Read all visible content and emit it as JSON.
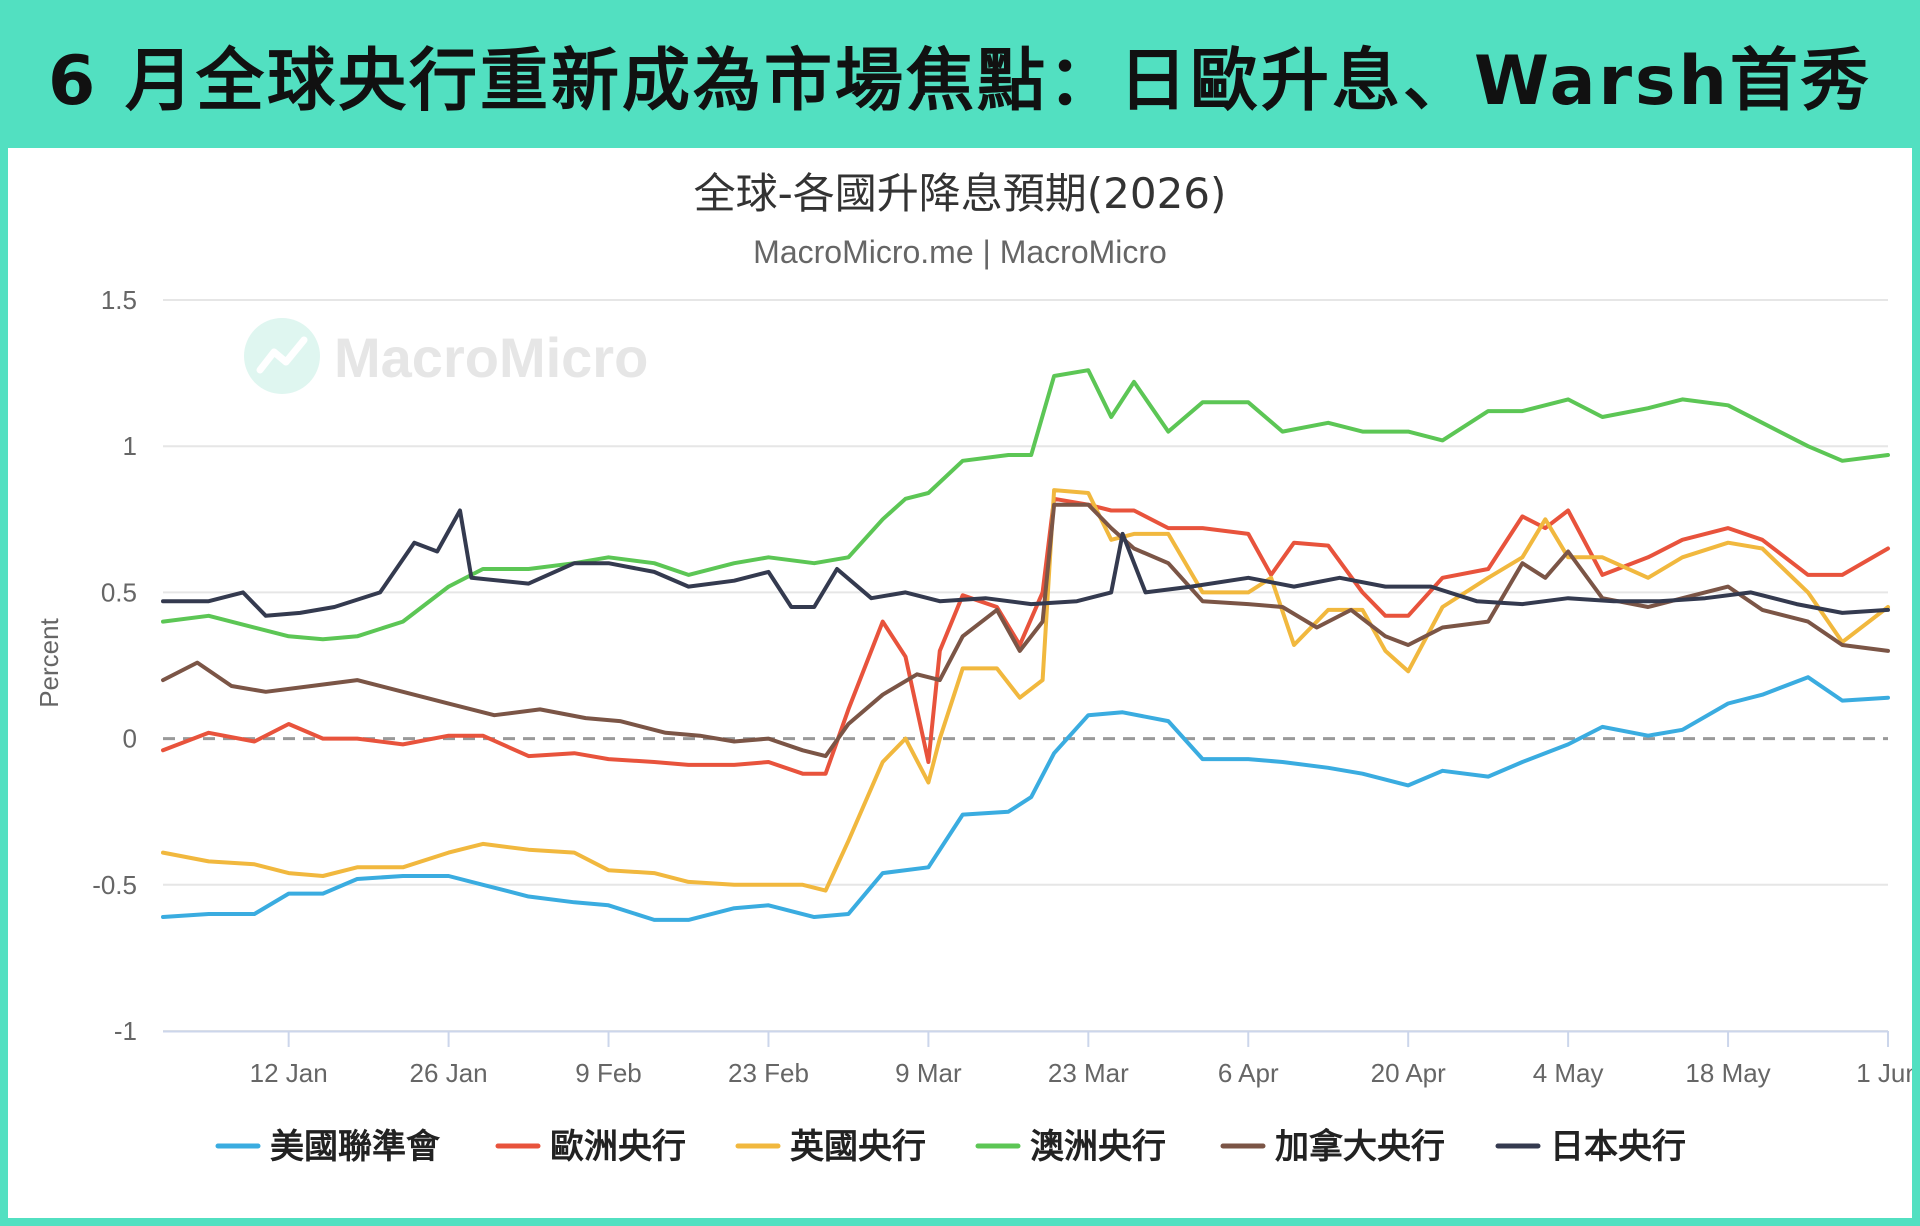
{
  "header": {
    "title": "6 月全球央行重新成為市場焦點：日歐升息、Warsh首秀"
  },
  "watermark": "MacroMicro",
  "chart_data": {
    "type": "line",
    "title": "全球-各國升降息預期(2026)",
    "subtitle": "MacroMicro.me | MacroMicro",
    "ylabel": "Percent",
    "ylim": [
      -1,
      1.5
    ],
    "yticks": [
      "1.5",
      "1",
      "0.5",
      "0",
      "-0.5",
      "-1"
    ],
    "ytick_values": [
      1.5,
      1,
      0.5,
      0,
      -0.5,
      -1
    ],
    "xlim": [
      "2026-01-01",
      "2026-06-01"
    ],
    "xticks": [
      "12 Jan",
      "26 Jan",
      "9 Feb",
      "23 Feb",
      "9 Mar",
      "23 Mar",
      "6 Apr",
      "20 Apr",
      "4 May",
      "18 May",
      "1 Jun"
    ],
    "xtick_dates": [
      "2026-01-12",
      "2026-01-26",
      "2026-02-09",
      "2026-02-23",
      "2026-03-09",
      "2026-03-23",
      "2026-04-06",
      "2026-04-20",
      "2026-05-04",
      "2026-05-18",
      "2026-06-01"
    ],
    "zero_line": "dashed",
    "grid": true,
    "legend_position": "bottom",
    "series": [
      {
        "name": "美國聯準會",
        "color": "#3aace0",
        "x": [
          "2026-01-01",
          "2026-01-05",
          "2026-01-09",
          "2026-01-12",
          "2026-01-15",
          "2026-01-18",
          "2026-01-22",
          "2026-01-26",
          "2026-01-29",
          "2026-02-02",
          "2026-02-06",
          "2026-02-09",
          "2026-02-13",
          "2026-02-16",
          "2026-02-20",
          "2026-02-23",
          "2026-02-27",
          "2026-03-02",
          "2026-03-05",
          "2026-03-09",
          "2026-03-12",
          "2026-03-16",
          "2026-03-18",
          "2026-03-20",
          "2026-03-23",
          "2026-03-26",
          "2026-03-30",
          "2026-04-02",
          "2026-04-06",
          "2026-04-09",
          "2026-04-13",
          "2026-04-16",
          "2026-04-20",
          "2026-04-23",
          "2026-04-27",
          "2026-04-30",
          "2026-05-04",
          "2026-05-07",
          "2026-05-11",
          "2026-05-14",
          "2026-05-18",
          "2026-05-21",
          "2026-05-25",
          "2026-05-28",
          "2026-06-01"
        ],
        "y": [
          -0.61,
          -0.6,
          -0.6,
          -0.53,
          -0.53,
          -0.48,
          -0.47,
          -0.47,
          -0.5,
          -0.54,
          -0.56,
          -0.57,
          -0.62,
          -0.62,
          -0.58,
          -0.57,
          -0.61,
          -0.6,
          -0.46,
          -0.44,
          -0.26,
          -0.25,
          -0.2,
          -0.05,
          0.08,
          0.09,
          0.06,
          -0.07,
          -0.07,
          -0.08,
          -0.1,
          -0.12,
          -0.16,
          -0.11,
          -0.13,
          -0.08,
          -0.02,
          0.04,
          0.01,
          0.03,
          0.12,
          0.15,
          0.21,
          0.13,
          0.14
        ]
      },
      {
        "name": "歐洲央行",
        "color": "#e8533c",
        "x": [
          "2026-01-01",
          "2026-01-05",
          "2026-01-09",
          "2026-01-12",
          "2026-01-15",
          "2026-01-18",
          "2026-01-22",
          "2026-01-26",
          "2026-01-29",
          "2026-02-02",
          "2026-02-06",
          "2026-02-09",
          "2026-02-13",
          "2026-02-16",
          "2026-02-20",
          "2026-02-23",
          "2026-02-26",
          "2026-02-28",
          "2026-03-02",
          "2026-03-05",
          "2026-03-07",
          "2026-03-09",
          "2026-03-10",
          "2026-03-12",
          "2026-03-15",
          "2026-03-17",
          "2026-03-19",
          "2026-03-20",
          "2026-03-23",
          "2026-03-25",
          "2026-03-27",
          "2026-03-30",
          "2026-04-02",
          "2026-04-06",
          "2026-04-08",
          "2026-04-10",
          "2026-04-13",
          "2026-04-16",
          "2026-04-18",
          "2026-04-20",
          "2026-04-23",
          "2026-04-27",
          "2026-04-30",
          "2026-05-02",
          "2026-05-04",
          "2026-05-07",
          "2026-05-11",
          "2026-05-14",
          "2026-05-18",
          "2026-05-21",
          "2026-05-25",
          "2026-05-28",
          "2026-06-01"
        ],
        "y": [
          -0.04,
          0.02,
          -0.01,
          0.05,
          0.0,
          0.0,
          -0.02,
          0.01,
          0.01,
          -0.06,
          -0.05,
          -0.07,
          -0.08,
          -0.09,
          -0.09,
          -0.08,
          -0.12,
          -0.12,
          0.1,
          0.4,
          0.28,
          -0.08,
          0.3,
          0.49,
          0.45,
          0.32,
          0.5,
          0.82,
          0.8,
          0.78,
          0.78,
          0.72,
          0.72,
          0.7,
          0.56,
          0.67,
          0.66,
          0.5,
          0.42,
          0.42,
          0.55,
          0.58,
          0.76,
          0.72,
          0.78,
          0.56,
          0.62,
          0.68,
          0.72,
          0.68,
          0.56,
          0.56,
          0.65
        ]
      },
      {
        "name": "英國央行",
        "color": "#f1b83e",
        "x": [
          "2026-01-01",
          "2026-01-05",
          "2026-01-09",
          "2026-01-12",
          "2026-01-15",
          "2026-01-18",
          "2026-01-22",
          "2026-01-26",
          "2026-01-29",
          "2026-02-02",
          "2026-02-06",
          "2026-02-09",
          "2026-02-13",
          "2026-02-16",
          "2026-02-20",
          "2026-02-23",
          "2026-02-26",
          "2026-02-28",
          "2026-03-02",
          "2026-03-05",
          "2026-03-07",
          "2026-03-09",
          "2026-03-10",
          "2026-03-12",
          "2026-03-15",
          "2026-03-17",
          "2026-03-19",
          "2026-03-20",
          "2026-03-23",
          "2026-03-25",
          "2026-03-27",
          "2026-03-30",
          "2026-04-02",
          "2026-04-06",
          "2026-04-08",
          "2026-04-10",
          "2026-04-13",
          "2026-04-16",
          "2026-04-18",
          "2026-04-20",
          "2026-04-23",
          "2026-04-27",
          "2026-04-30",
          "2026-05-02",
          "2026-05-04",
          "2026-05-07",
          "2026-05-11",
          "2026-05-14",
          "2026-05-18",
          "2026-05-21",
          "2026-05-25",
          "2026-05-28",
          "2026-06-01"
        ],
        "y": [
          -0.39,
          -0.42,
          -0.43,
          -0.46,
          -0.47,
          -0.44,
          -0.44,
          -0.39,
          -0.36,
          -0.38,
          -0.39,
          -0.45,
          -0.46,
          -0.49,
          -0.5,
          -0.5,
          -0.5,
          -0.52,
          -0.35,
          -0.08,
          0.0,
          -0.15,
          0.0,
          0.24,
          0.24,
          0.14,
          0.2,
          0.85,
          0.84,
          0.68,
          0.7,
          0.7,
          0.5,
          0.5,
          0.55,
          0.32,
          0.44,
          0.44,
          0.3,
          0.23,
          0.45,
          0.55,
          0.62,
          0.75,
          0.62,
          0.62,
          0.55,
          0.62,
          0.67,
          0.65,
          0.5,
          0.33,
          0.45
        ]
      },
      {
        "name": "澳洲央行",
        "color": "#5cc655",
        "x": [
          "2026-01-01",
          "2026-01-05",
          "2026-01-09",
          "2026-01-12",
          "2026-01-15",
          "2026-01-18",
          "2026-01-22",
          "2026-01-26",
          "2026-01-29",
          "2026-02-02",
          "2026-02-06",
          "2026-02-09",
          "2026-02-13",
          "2026-02-16",
          "2026-02-20",
          "2026-02-23",
          "2026-02-27",
          "2026-03-02",
          "2026-03-05",
          "2026-03-07",
          "2026-03-09",
          "2026-03-12",
          "2026-03-16",
          "2026-03-18",
          "2026-03-20",
          "2026-03-23",
          "2026-03-25",
          "2026-03-27",
          "2026-03-30",
          "2026-04-02",
          "2026-04-06",
          "2026-04-09",
          "2026-04-13",
          "2026-04-16",
          "2026-04-20",
          "2026-04-23",
          "2026-04-27",
          "2026-04-30",
          "2026-05-04",
          "2026-05-07",
          "2026-05-11",
          "2026-05-14",
          "2026-05-18",
          "2026-05-21",
          "2026-05-25",
          "2026-05-28",
          "2026-06-01"
        ],
        "y": [
          0.4,
          0.42,
          0.38,
          0.35,
          0.34,
          0.35,
          0.4,
          0.52,
          0.58,
          0.58,
          0.6,
          0.62,
          0.6,
          0.56,
          0.6,
          0.62,
          0.6,
          0.62,
          0.75,
          0.82,
          0.84,
          0.95,
          0.97,
          0.97,
          1.24,
          1.26,
          1.1,
          1.22,
          1.05,
          1.15,
          1.15,
          1.05,
          1.08,
          1.05,
          1.05,
          1.02,
          1.12,
          1.12,
          1.16,
          1.1,
          1.13,
          1.16,
          1.14,
          1.08,
          1.0,
          0.95,
          0.97
        ]
      },
      {
        "name": "加拿大央行",
        "color": "#7b5546",
        "x": [
          "2026-01-01",
          "2026-01-04",
          "2026-01-07",
          "2026-01-10",
          "2026-01-14",
          "2026-01-18",
          "2026-01-22",
          "2026-01-26",
          "2026-01-30",
          "2026-02-03",
          "2026-02-07",
          "2026-02-10",
          "2026-02-14",
          "2026-02-17",
          "2026-02-20",
          "2026-02-23",
          "2026-02-26",
          "2026-02-28",
          "2026-03-02",
          "2026-03-05",
          "2026-03-08",
          "2026-03-10",
          "2026-03-12",
          "2026-03-15",
          "2026-03-17",
          "2026-03-19",
          "2026-03-20",
          "2026-03-23",
          "2026-03-25",
          "2026-03-27",
          "2026-03-30",
          "2026-04-02",
          "2026-04-06",
          "2026-04-09",
          "2026-04-12",
          "2026-04-15",
          "2026-04-18",
          "2026-04-20",
          "2026-04-23",
          "2026-04-27",
          "2026-04-30",
          "2026-05-02",
          "2026-05-04",
          "2026-05-07",
          "2026-05-11",
          "2026-05-14",
          "2026-05-18",
          "2026-05-21",
          "2026-05-25",
          "2026-05-28",
          "2026-06-01"
        ],
        "y": [
          0.2,
          0.26,
          0.18,
          0.16,
          0.18,
          0.2,
          0.16,
          0.12,
          0.08,
          0.1,
          0.07,
          0.06,
          0.02,
          0.01,
          -0.01,
          0.0,
          -0.04,
          -0.06,
          0.05,
          0.15,
          0.22,
          0.2,
          0.35,
          0.44,
          0.3,
          0.4,
          0.8,
          0.8,
          0.72,
          0.65,
          0.6,
          0.47,
          0.46,
          0.45,
          0.38,
          0.44,
          0.35,
          0.32,
          0.38,
          0.4,
          0.6,
          0.55,
          0.64,
          0.48,
          0.45,
          0.48,
          0.52,
          0.44,
          0.4,
          0.32,
          0.3
        ]
      },
      {
        "name": "日本央行",
        "color": "#343a4f",
        "x": [
          "2026-01-01",
          "2026-01-05",
          "2026-01-08",
          "2026-01-10",
          "2026-01-13",
          "2026-01-16",
          "2026-01-20",
          "2026-01-23",
          "2026-01-25",
          "2026-01-27",
          "2026-01-28",
          "2026-02-02",
          "2026-02-06",
          "2026-02-09",
          "2026-02-13",
          "2026-02-16",
          "2026-02-20",
          "2026-02-23",
          "2026-02-25",
          "2026-02-27",
          "2026-03-01",
          "2026-03-04",
          "2026-03-07",
          "2026-03-10",
          "2026-03-14",
          "2026-03-18",
          "2026-03-22",
          "2026-03-25",
          "2026-03-26",
          "2026-03-28",
          "2026-04-01",
          "2026-04-06",
          "2026-04-10",
          "2026-04-14",
          "2026-04-18",
          "2026-04-22",
          "2026-04-26",
          "2026-04-30",
          "2026-05-04",
          "2026-05-08",
          "2026-05-12",
          "2026-05-16",
          "2026-05-20",
          "2026-05-24",
          "2026-05-28",
          "2026-06-01"
        ],
        "y": [
          0.47,
          0.47,
          0.5,
          0.42,
          0.43,
          0.45,
          0.5,
          0.67,
          0.64,
          0.78,
          0.55,
          0.53,
          0.6,
          0.6,
          0.57,
          0.52,
          0.54,
          0.57,
          0.45,
          0.45,
          0.58,
          0.48,
          0.5,
          0.47,
          0.48,
          0.46,
          0.47,
          0.5,
          0.7,
          0.5,
          0.52,
          0.55,
          0.52,
          0.55,
          0.52,
          0.52,
          0.47,
          0.46,
          0.48,
          0.47,
          0.47,
          0.48,
          0.5,
          0.46,
          0.43,
          0.44
        ]
      }
    ]
  }
}
